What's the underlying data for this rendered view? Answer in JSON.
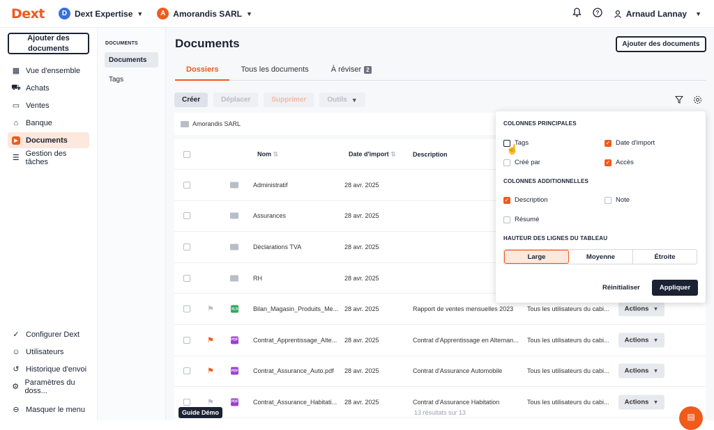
{
  "topbar": {
    "logo": "Dext",
    "org1": {
      "initial": "D",
      "name": "Dext Expertise",
      "color": "#3b6fd8"
    },
    "org2": {
      "initial": "A",
      "name": "Amorandis SARL",
      "color": "#f05a1a"
    },
    "user": "Arnaud Lannay"
  },
  "sidebar": {
    "add_button": "Ajouter des documents",
    "items": [
      {
        "icon": "▣",
        "label": "Vue d'ensemble"
      },
      {
        "icon": "🛒",
        "label": "Achats"
      },
      {
        "icon": "▭",
        "label": "Ventes"
      },
      {
        "icon": "⌂",
        "label": "Banque"
      },
      {
        "icon": "▸",
        "label": "Documents"
      },
      {
        "icon": "☰",
        "label": "Gestion des tâches"
      }
    ],
    "bottom": [
      {
        "icon": "✓",
        "label": "Configurer Dext"
      },
      {
        "icon": "☺",
        "label": "Utilisateurs"
      },
      {
        "icon": "↺",
        "label": "Historique d'envoi"
      },
      {
        "icon": "⚙",
        "label": "Paramètres du doss..."
      },
      {
        "icon": "←",
        "label": "Masquer le menu"
      }
    ]
  },
  "subnav": {
    "title": "DOCUMENTS",
    "items": [
      "Documents",
      "Tags"
    ]
  },
  "main": {
    "title": "Documents",
    "add_button": "Ajouter des documents",
    "tabs": [
      "Dossiers",
      "Tous les documents",
      "À réviser"
    ],
    "review_count": "2",
    "toolbar": [
      "Créer",
      "Déplacer",
      "Supprimer",
      "Outils"
    ],
    "breadcrumb": "Amorandis SARL",
    "columns": {
      "name": "Nom",
      "date": "Date d'import",
      "description": "Description"
    },
    "rows": [
      {
        "name": "Administratif",
        "date": "28 avr. 2025",
        "description": "",
        "access": "",
        "type": "folder"
      },
      {
        "name": "Assurances",
        "date": "28 avr. 2025",
        "description": "",
        "access": "",
        "type": "folder"
      },
      {
        "name": "Déclarations TVA",
        "date": "28 avr. 2025",
        "description": "",
        "access": "",
        "type": "folder"
      },
      {
        "name": "RH",
        "date": "28 avr. 2025",
        "description": "",
        "access": "",
        "type": "folder"
      },
      {
        "name": "Bilan_Magasin_Produits_Me...",
        "date": "28 avr. 2025",
        "description": "Rapport de ventes mensuelles 2023",
        "access": "Tous les utilisateurs du cabi...",
        "type": "xls",
        "flag": "grey",
        "action": "Actions"
      },
      {
        "name": "Contrat_Apprentissage_Alte...",
        "date": "28 avr. 2025",
        "description": "Contrat d'Apprentissage en Alternan...",
        "access": "Tous les utilisateurs du cabi...",
        "type": "pdf",
        "flag": "orange",
        "action": "Actions"
      },
      {
        "name": "Contrat_Assurance_Auto.pdf",
        "date": "28 avr. 2025",
        "description": "Contrat d'Assurance Automobile",
        "access": "Tous les utilisateurs du cabi...",
        "type": "pdf",
        "flag": "orange",
        "action": "Actions"
      },
      {
        "name": "Contrat_Assurance_Habitati...",
        "date": "28 avr. 2025",
        "description": "Contrat d'Assurance Habitation",
        "access": "Tous les utilisateurs du cabi...",
        "type": "pdf",
        "flag": "grey",
        "action": "Actions"
      }
    ],
    "results": "13 résultats sur 13"
  },
  "guide": "Guide Démo",
  "panel": {
    "main_title": "COLONNES PRINCIPALES",
    "main_options": [
      {
        "label": "Tags",
        "checked": false
      },
      {
        "label": "Date d'import",
        "checked": true
      },
      {
        "label": "Créé par",
        "checked": false
      },
      {
        "label": "Accès",
        "checked": true
      }
    ],
    "extra_title": "COLONNES ADDITIONNELLES",
    "extra_options": [
      {
        "label": "Description",
        "checked": true
      },
      {
        "label": "Note",
        "checked": false
      },
      {
        "label": "Résumé",
        "checked": false
      }
    ],
    "height_title": "HAUTEUR DES LIGNES DU TABLEAU",
    "heights": [
      "Large",
      "Moyenne",
      "Étroite"
    ],
    "reset": "Réinitialiser",
    "apply": "Appliquer"
  }
}
